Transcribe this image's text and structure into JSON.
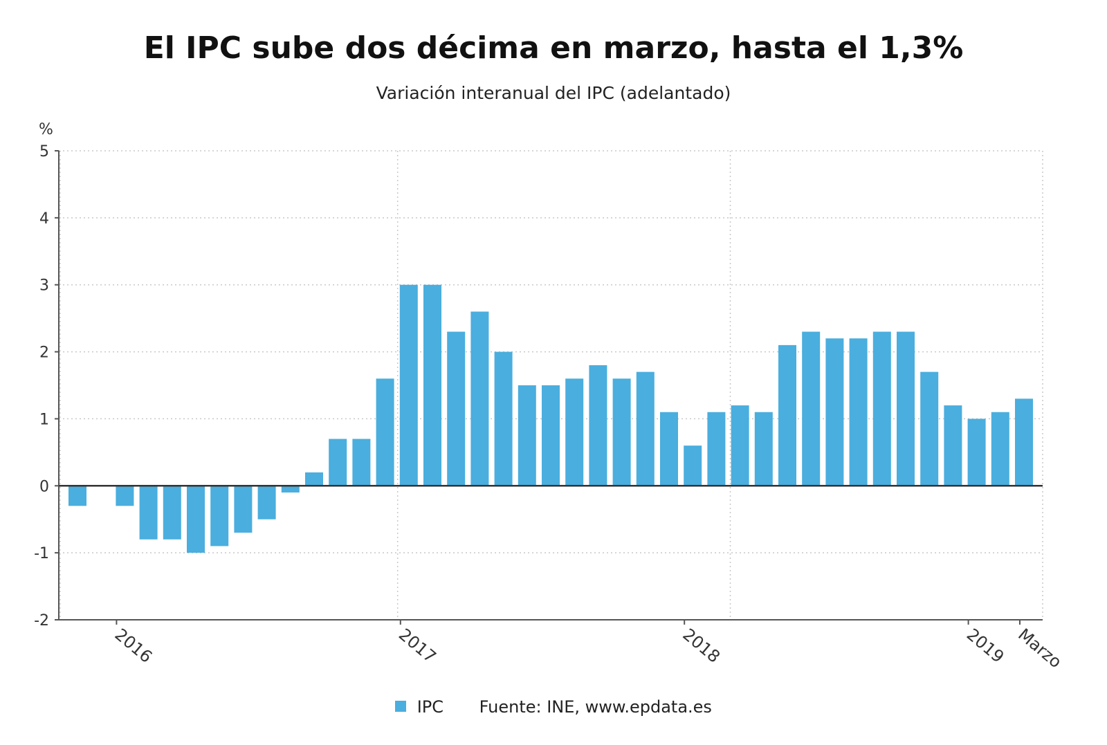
{
  "chart_data": {
    "type": "bar",
    "title": "El IPC sube dos décima en marzo, hasta el 1,3%",
    "subtitle": "Variación interanual del IPC (adelantado)",
    "ylabel": "%",
    "ylim": [
      -2,
      5
    ],
    "yticks": [
      5,
      4,
      3,
      2,
      1,
      0,
      -1,
      -2
    ],
    "grid": true,
    "series": [
      {
        "name": "IPC",
        "color": "#4aaede",
        "values": [
          -0.3,
          0.0,
          -0.3,
          -0.8,
          -0.8,
          -1.0,
          -0.9,
          -0.7,
          -0.5,
          -0.1,
          0.2,
          0.7,
          0.7,
          1.6,
          3.0,
          3.0,
          2.3,
          2.6,
          2.0,
          1.5,
          1.5,
          1.6,
          1.8,
          1.6,
          1.7,
          1.1,
          0.6,
          1.1,
          1.2,
          1.1,
          2.1,
          2.3,
          2.2,
          2.2,
          2.3,
          2.3,
          1.7,
          1.2,
          1.0,
          1.1,
          1.3
        ]
      }
    ],
    "x_labels": [
      {
        "label": "2016",
        "index": 2
      },
      {
        "label": "2017",
        "index": 14
      },
      {
        "label": "2018",
        "index": 26
      },
      {
        "label": "2019",
        "index": 38
      },
      {
        "label": "Marzo",
        "index": 40
      }
    ],
    "vertical_gridlines_after_index": [
      13,
      27
    ]
  },
  "legend": {
    "series_label": "IPC",
    "source": "Fuente: INE, www.epdata.es"
  }
}
